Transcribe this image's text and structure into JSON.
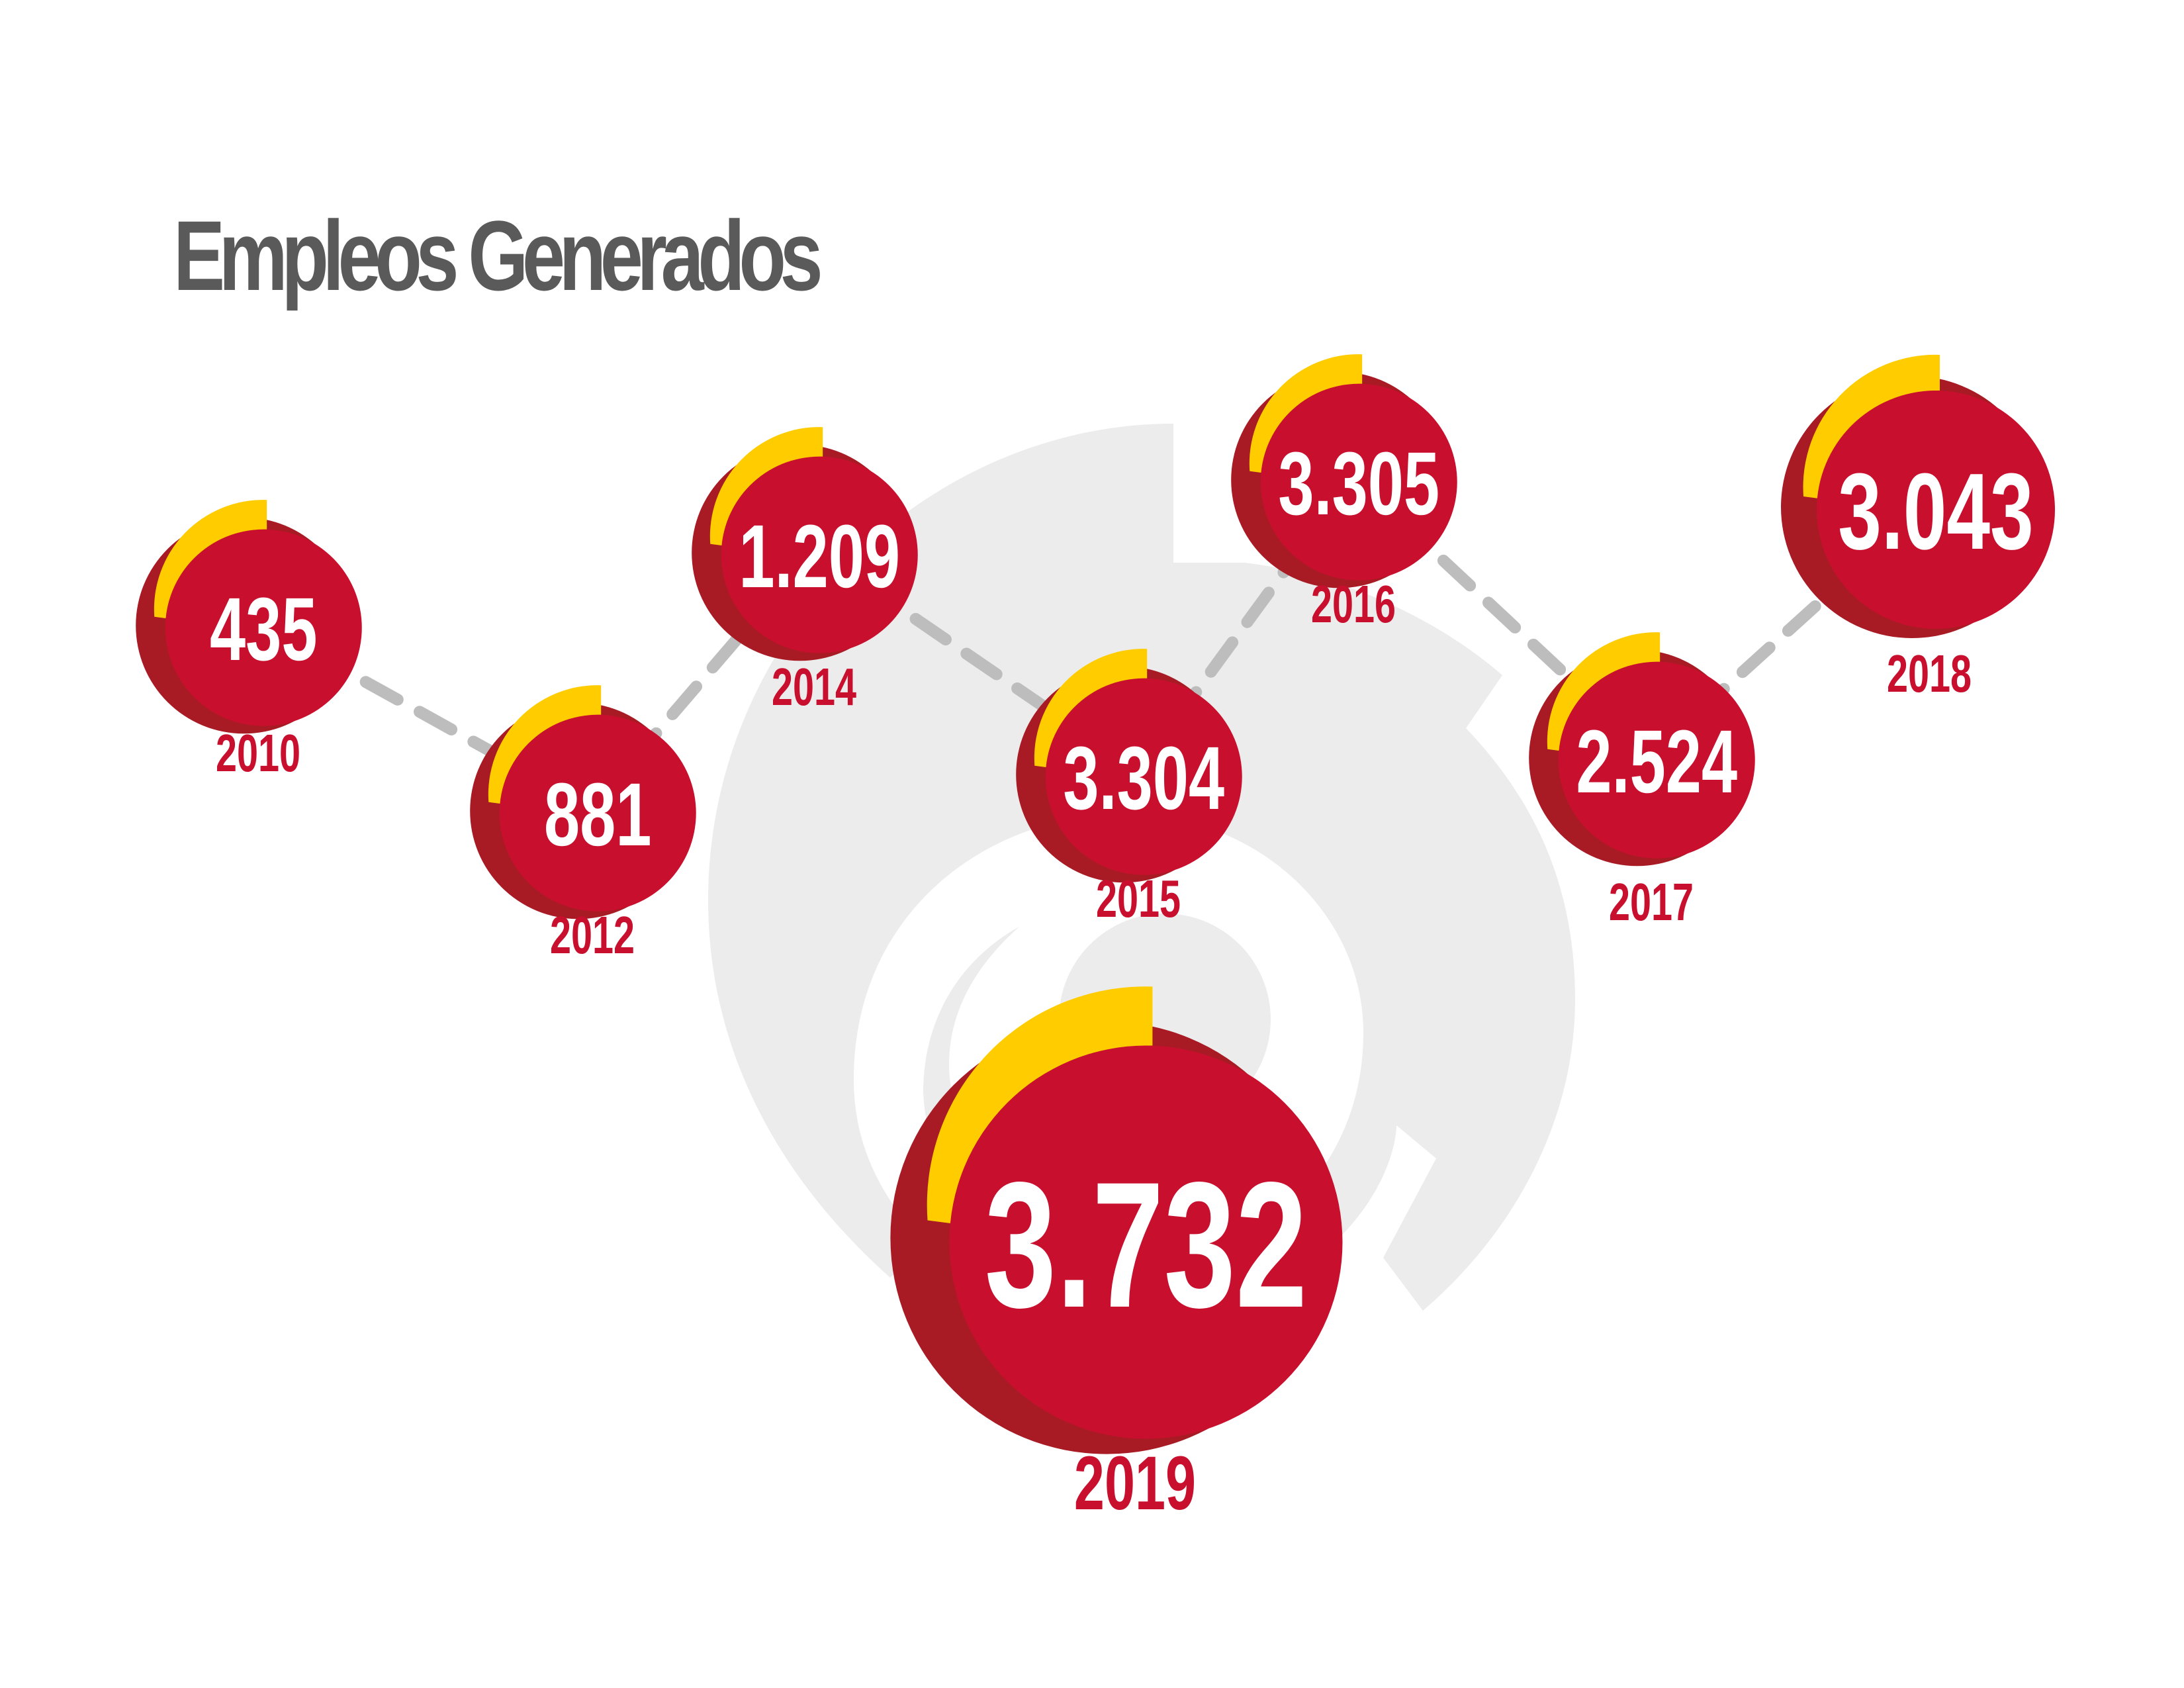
{
  "title": "Empleos Generados",
  "colors": {
    "circle_red": "#c8102e",
    "shadow_red": "#a81b24",
    "accent_yellow": "#ffcc00",
    "connector_gray": "#bdbdbd",
    "logo_gray": "#ececec",
    "title_gray": "#5a5a5a"
  },
  "chart_data": {
    "type": "line",
    "title": "Empleos Generados",
    "x": [
      "2010",
      "2012",
      "2014",
      "2015",
      "2016",
      "2017",
      "2018",
      "2019"
    ],
    "series": [
      {
        "values": [
          435,
          881,
          1209,
          3304,
          3305,
          2524,
          3043,
          3732
        ],
        "labels": [
          "435",
          "881",
          "1.209",
          "3.304",
          "3.305",
          "2.524",
          "3.043",
          "3.732"
        ]
      }
    ]
  }
}
